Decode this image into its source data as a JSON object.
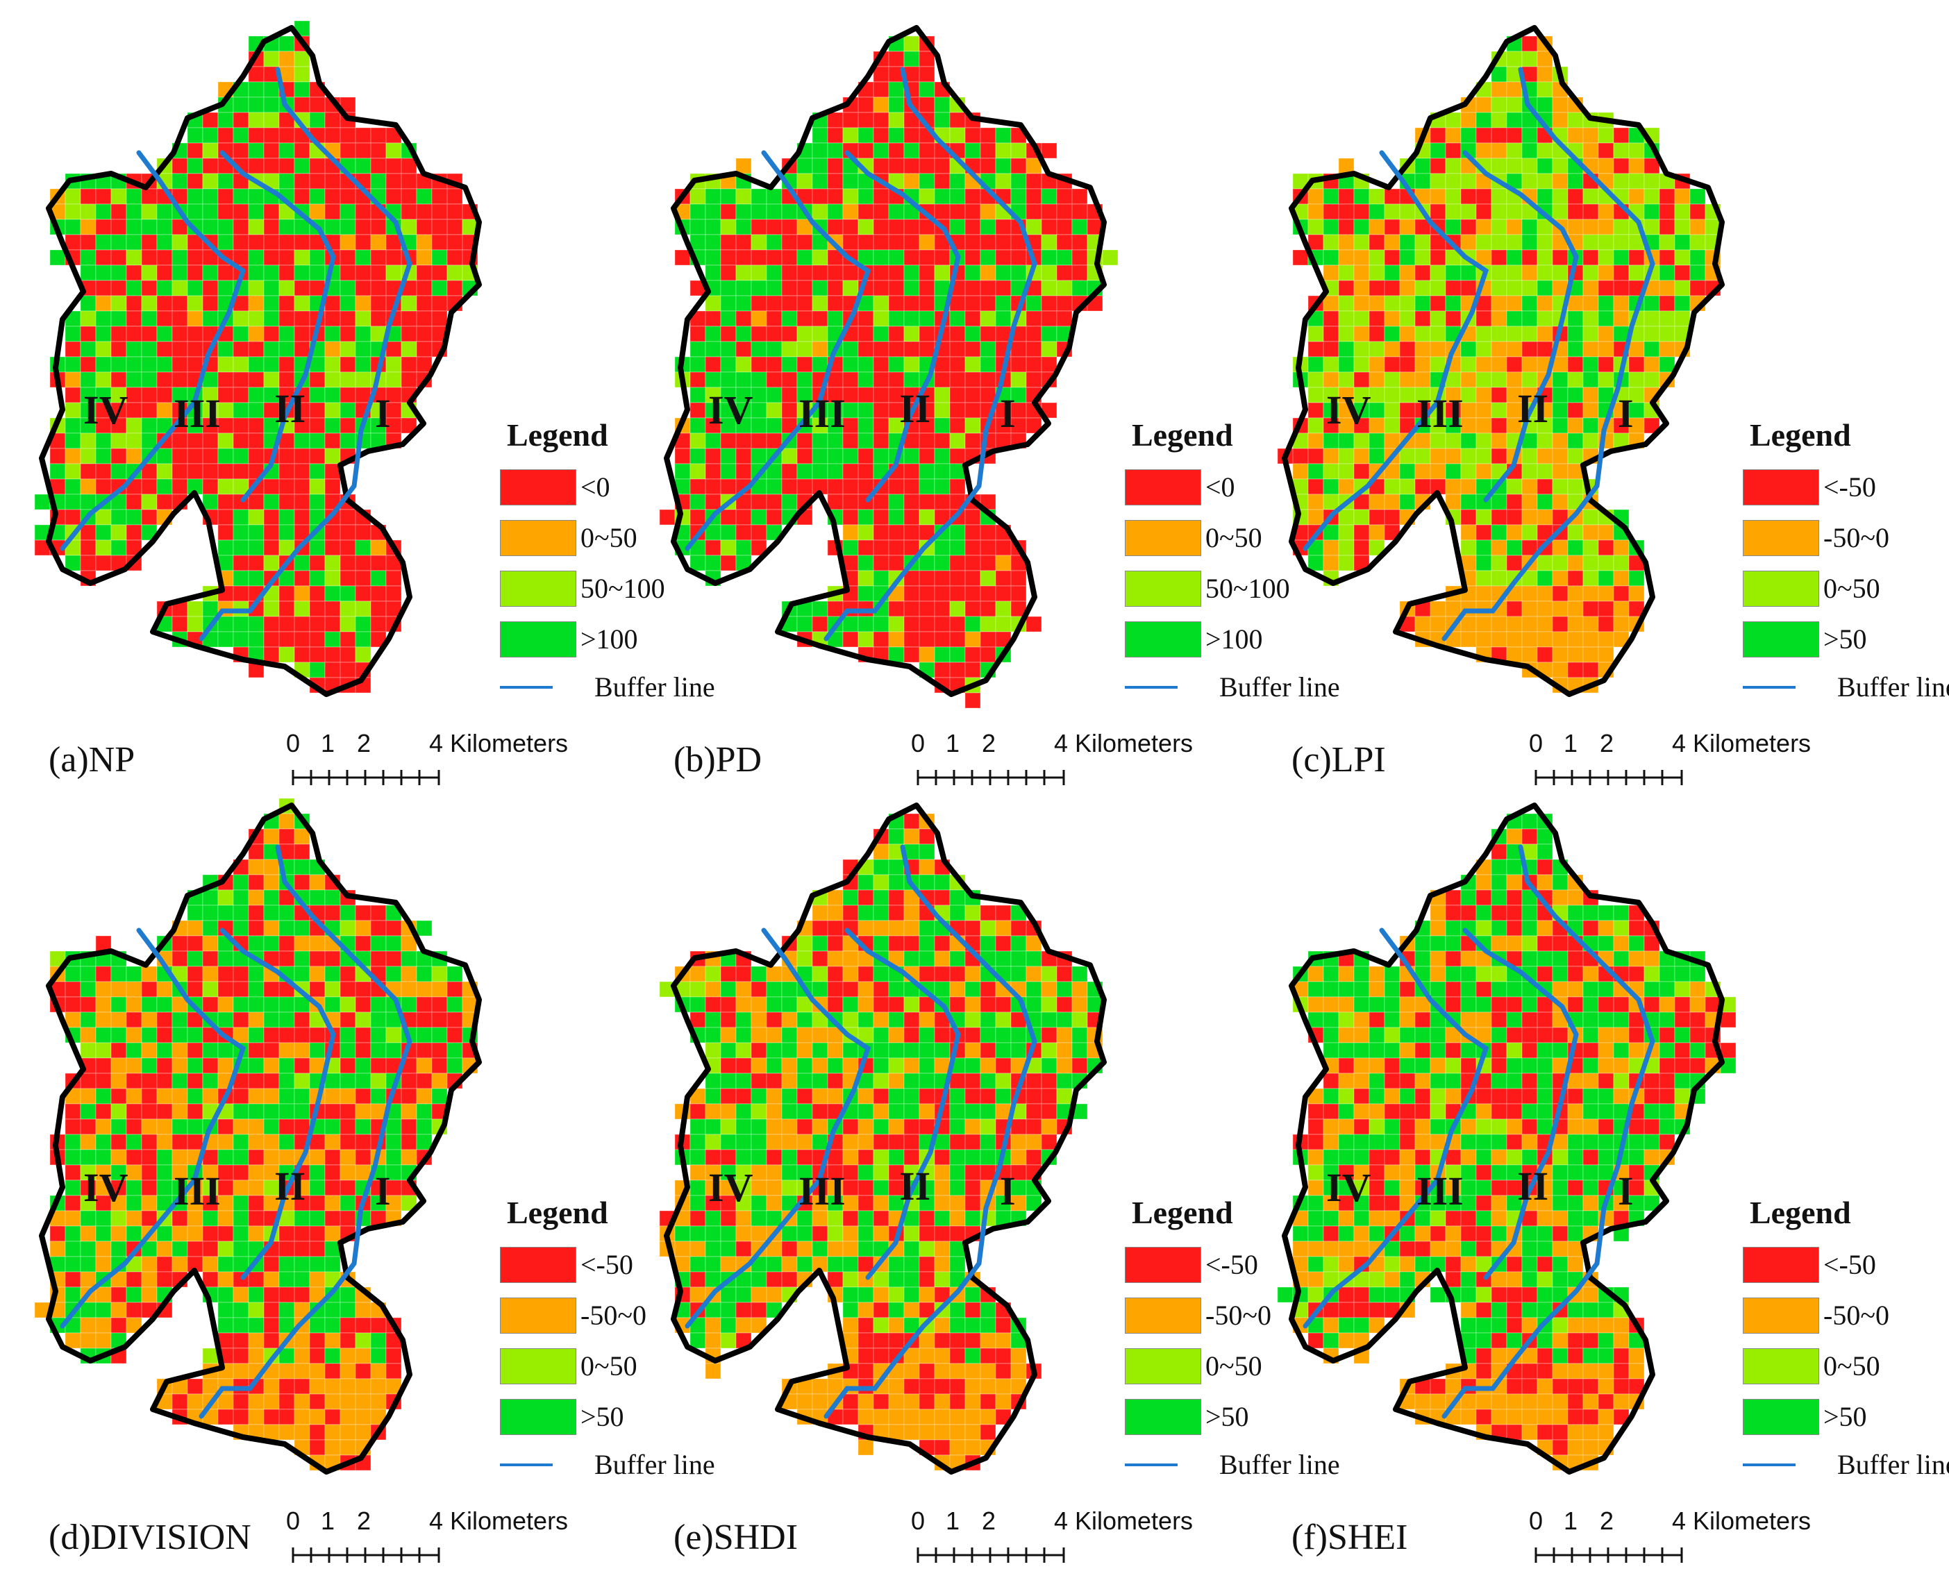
{
  "colors": {
    "red": "#ff1a1a",
    "orange": "#ffa500",
    "light_green": "#99ee00",
    "green": "#00dd22",
    "boundary": "#000000",
    "buffer_line": "#1f7bd0"
  },
  "zones": [
    "IV",
    "III",
    "II",
    "I"
  ],
  "legend_title": "Legend",
  "buffer_label": "Buffer line",
  "scale": {
    "t0": "0",
    "t1": "1",
    "t2": "2",
    "t4": "4",
    "unit": "Kilometers"
  },
  "panels": [
    {
      "label": "(a)NP",
      "scheme": "np",
      "legend": [
        {
          "label": "<0",
          "color": "#ff1a1a"
        },
        {
          "label": "0~50",
          "color": "#ffa500"
        },
        {
          "label": "50~100",
          "color": "#99ee00"
        },
        {
          "label": ">100",
          "color": "#00dd22"
        }
      ]
    },
    {
      "label": "(b)PD",
      "scheme": "np",
      "legend": [
        {
          "label": "<0",
          "color": "#ff1a1a"
        },
        {
          "label": "0~50",
          "color": "#ffa500"
        },
        {
          "label": "50~100",
          "color": "#99ee00"
        },
        {
          "label": ">100",
          "color": "#00dd22"
        }
      ]
    },
    {
      "label": "(c)LPI",
      "scheme": "lpi",
      "legend": [
        {
          "label": "<-50",
          "color": "#ff1a1a"
        },
        {
          "label": "-50~0",
          "color": "#ffa500"
        },
        {
          "label": "0~50",
          "color": "#99ee00"
        },
        {
          "label": ">50",
          "color": "#00dd22"
        }
      ]
    },
    {
      "label": "(d)DIVISION",
      "scheme": "div",
      "legend": [
        {
          "label": "<-50",
          "color": "#ff1a1a"
        },
        {
          "label": "-50~0",
          "color": "#ffa500"
        },
        {
          "label": "0~50",
          "color": "#99ee00"
        },
        {
          "label": ">50",
          "color": "#00dd22"
        }
      ]
    },
    {
      "label": "(e)SHDI",
      "scheme": "div",
      "legend": [
        {
          "label": "<-50",
          "color": "#ff1a1a"
        },
        {
          "label": "-50~0",
          "color": "#ffa500"
        },
        {
          "label": "0~50",
          "color": "#99ee00"
        },
        {
          "label": ">50",
          "color": "#00dd22"
        }
      ]
    },
    {
      "label": "(f)SHEI",
      "scheme": "div",
      "legend": [
        {
          "label": "<-50",
          "color": "#ff1a1a"
        },
        {
          "label": "-50~0",
          "color": "#ffa500"
        },
        {
          "label": "0~50",
          "color": "#99ee00"
        },
        {
          "label": ">50",
          "color": "#00dd22"
        }
      ]
    }
  ]
}
